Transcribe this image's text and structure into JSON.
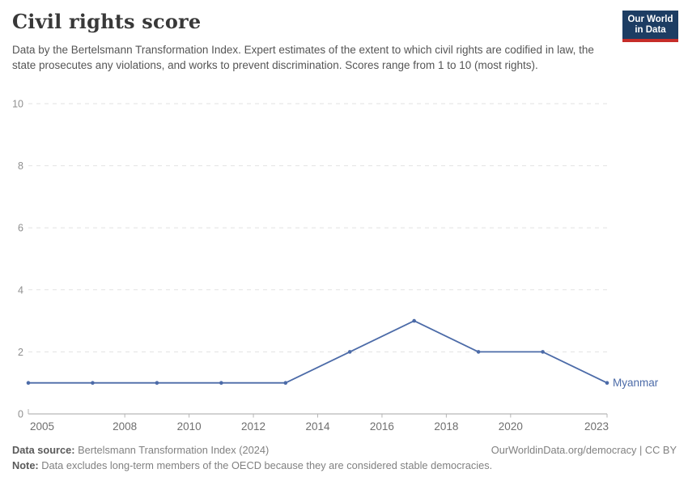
{
  "header": {
    "title": "Civil rights score",
    "subtitle": "Data by the Bertelsmann Transformation Index. Expert estimates of the extent to which civil rights are codified in law, the state prosecutes any violations, and works to prevent discrimination. Scores range from 1 to 10 (most rights)."
  },
  "logo": {
    "line1": "Our World",
    "line2": "in Data",
    "bg_color": "#1d3d63",
    "bar_color": "#c62d29"
  },
  "chart_data": {
    "type": "line",
    "title": "Civil rights score",
    "x": [
      2005,
      2007,
      2009,
      2011,
      2013,
      2015,
      2017,
      2019,
      2021,
      2023
    ],
    "series": [
      {
        "name": "Myanmar",
        "values": [
          1,
          1,
          1,
          1,
          1,
          2,
          3,
          2,
          2,
          1
        ],
        "color": "#4c6ba8"
      }
    ],
    "x_ticks": [
      2005,
      2008,
      2010,
      2012,
      2014,
      2016,
      2018,
      2020,
      2023
    ],
    "y_ticks": [
      0,
      2,
      4,
      6,
      8,
      10
    ],
    "xlim": [
      2005,
      2023
    ],
    "ylim": [
      0,
      10
    ],
    "grid": "horizontal-dashed",
    "legend_position": "end-of-line-label",
    "xlabel": "",
    "ylabel": "",
    "colors": {
      "gridline": "#e2e2e2",
      "axis_line": "#a5a5a5",
      "tick_mark": "#b5b5b5",
      "y_tick_label": "#8f8f8f",
      "x_tick_label": "#6f6f6f"
    }
  },
  "footer": {
    "source_label": "Data source:",
    "source_text": " Bertelsmann Transformation Index (2024)",
    "rights": "OurWorldinData.org/democracy | CC BY",
    "note_label": "Note:",
    "note_text": " Data excludes long-term members of the OECD because they are considered stable democracies."
  }
}
